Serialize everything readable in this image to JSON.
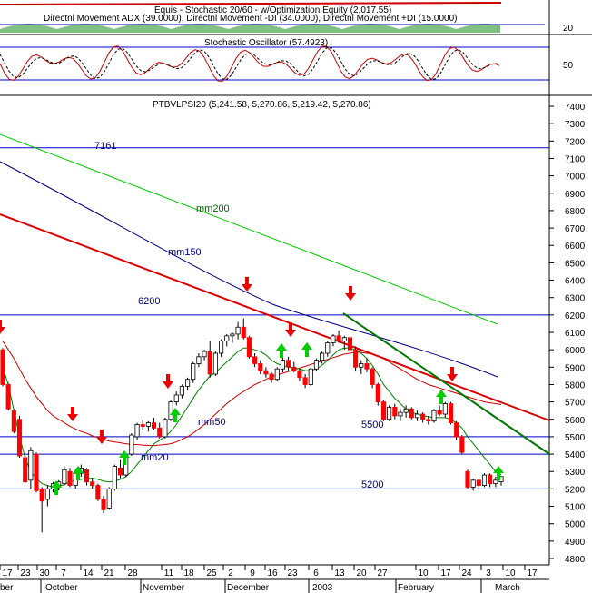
{
  "panels": {
    "equity_title": "Equis - Stochastic 20/60 - w/Optimization Equity (2,017.55)",
    "dmi_title": "Directnl Movement ADX (39.0000), Directnl Movement -DI (34.0000), Directnl Movement +DI (15.0000)",
    "dmi_level": "20",
    "stoch_title": "Stochastic Oscillator (57.4923)",
    "stoch_level": "50",
    "price_title": "PTBVLPSI20 (5,241.58, 5,270.86, 5,219.42, 5,270.86)"
  },
  "annotations": {
    "level_7161": "7161",
    "level_6200": "6200",
    "level_5500": "5500",
    "level_5200": "5200",
    "mm200": "mm200",
    "mm150": "mm150",
    "mm50": "mm50",
    "mm20": "mm20"
  },
  "colors": {
    "up_candle": "#ffffff",
    "down_candle": "#ff0000",
    "mm20": "#008000",
    "mm50": "#cc0000",
    "mm150": "#000080",
    "mm200": "#00cc00",
    "trend_red": "#dd0000",
    "trend_green": "#007700",
    "horizontal_levels": "#0000cc",
    "buy_arrow": "#00cc00",
    "sell_arrow": "#ee0000"
  },
  "chart_data": {
    "type": "candlestick",
    "title": "PTBVLPSI20 (5,241.58, 5,270.86, 5,219.42, 5,270.86)",
    "ylim": [
      4700,
      7450
    ],
    "y_ticks": [
      "4800",
      "4900",
      "5000",
      "5100",
      "5200",
      "5300",
      "5400",
      "5500",
      "5600",
      "5700",
      "5800",
      "5900",
      "6000",
      "6100",
      "6200",
      "6300",
      "6400",
      "6500",
      "6600",
      "6700",
      "6800",
      "6900",
      "7000",
      "7100",
      "7200",
      "7300",
      "7400"
    ],
    "x_ticks": [
      "17",
      "23",
      "30",
      "7",
      "14",
      "21",
      "28",
      "11",
      "18",
      "25",
      "2",
      "9",
      "16",
      "23",
      "6",
      "13",
      "20",
      "27",
      "10",
      "17",
      "24",
      "3",
      "10",
      "17"
    ],
    "months": [
      "ber",
      "October",
      "November",
      "December",
      "2003",
      "February",
      "March"
    ],
    "horizontal_levels": [
      7161,
      6200,
      5500,
      5400,
      5200
    ],
    "candles": [
      {
        "o": 6000,
        "h": 6010,
        "l": 5790,
        "c": 5800
      },
      {
        "o": 5800,
        "h": 5810,
        "l": 5650,
        "c": 5660
      },
      {
        "o": 5650,
        "h": 5660,
        "l": 5520,
        "c": 5530
      },
      {
        "o": 5600,
        "h": 5620,
        "l": 5380,
        "c": 5390
      },
      {
        "o": 5380,
        "h": 5390,
        "l": 5230,
        "c": 5240
      },
      {
        "o": 5250,
        "h": 5440,
        "l": 5200,
        "c": 5420
      },
      {
        "o": 5400,
        "h": 5410,
        "l": 5180,
        "c": 5190
      },
      {
        "o": 5200,
        "h": 5210,
        "l": 4950,
        "c": 5130
      },
      {
        "o": 5140,
        "h": 5220,
        "l": 5100,
        "c": 5200
      },
      {
        "o": 5200,
        "h": 5240,
        "l": 5180,
        "c": 5230
      },
      {
        "o": 5220,
        "h": 5250,
        "l": 5190,
        "c": 5240
      },
      {
        "o": 5230,
        "h": 5330,
        "l": 5220,
        "c": 5310
      },
      {
        "o": 5300,
        "h": 5320,
        "l": 5210,
        "c": 5220
      },
      {
        "o": 5220,
        "h": 5300,
        "l": 5200,
        "c": 5290
      },
      {
        "o": 5290,
        "h": 5340,
        "l": 5270,
        "c": 5320
      },
      {
        "o": 5310,
        "h": 5320,
        "l": 5220,
        "c": 5240
      },
      {
        "o": 5240,
        "h": 5260,
        "l": 5200,
        "c": 5220
      },
      {
        "o": 5220,
        "h": 5230,
        "l": 5130,
        "c": 5140
      },
      {
        "o": 5140,
        "h": 5160,
        "l": 5060,
        "c": 5080
      },
      {
        "o": 5090,
        "h": 5210,
        "l": 5080,
        "c": 5200
      },
      {
        "o": 5200,
        "h": 5340,
        "l": 5190,
        "c": 5330
      },
      {
        "o": 5320,
        "h": 5370,
        "l": 5260,
        "c": 5280
      },
      {
        "o": 5280,
        "h": 5400,
        "l": 5270,
        "c": 5390
      },
      {
        "o": 5400,
        "h": 5520,
        "l": 5390,
        "c": 5510
      },
      {
        "o": 5500,
        "h": 5580,
        "l": 5480,
        "c": 5570
      },
      {
        "o": 5570,
        "h": 5600,
        "l": 5540,
        "c": 5560
      },
      {
        "o": 5560,
        "h": 5590,
        "l": 5530,
        "c": 5580
      },
      {
        "o": 5580,
        "h": 5610,
        "l": 5540,
        "c": 5550
      },
      {
        "o": 5550,
        "h": 5580,
        "l": 5490,
        "c": 5500
      },
      {
        "o": 5500,
        "h": 5610,
        "l": 5490,
        "c": 5600
      },
      {
        "o": 5600,
        "h": 5710,
        "l": 5590,
        "c": 5700
      },
      {
        "o": 5700,
        "h": 5760,
        "l": 5680,
        "c": 5740
      },
      {
        "o": 5740,
        "h": 5800,
        "l": 5720,
        "c": 5790
      },
      {
        "o": 5790,
        "h": 5840,
        "l": 5770,
        "c": 5830
      },
      {
        "o": 5830,
        "h": 5930,
        "l": 5810,
        "c": 5920
      },
      {
        "o": 5920,
        "h": 5980,
        "l": 5900,
        "c": 5960
      },
      {
        "o": 5960,
        "h": 6000,
        "l": 5940,
        "c": 5990
      },
      {
        "o": 5990,
        "h": 6050,
        "l": 5840,
        "c": 5860
      },
      {
        "o": 5860,
        "h": 5990,
        "l": 5850,
        "c": 5980
      },
      {
        "o": 5980,
        "h": 6060,
        "l": 5960,
        "c": 6050
      },
      {
        "o": 6050,
        "h": 6090,
        "l": 6020,
        "c": 6080
      },
      {
        "o": 6080,
        "h": 6100,
        "l": 6040,
        "c": 6090
      },
      {
        "o": 6090,
        "h": 6160,
        "l": 6060,
        "c": 6130
      },
      {
        "o": 6130,
        "h": 6180,
        "l": 6060,
        "c": 6070
      },
      {
        "o": 6070,
        "h": 6080,
        "l": 5950,
        "c": 5960
      },
      {
        "o": 5960,
        "h": 5980,
        "l": 5900,
        "c": 5920
      },
      {
        "o": 5920,
        "h": 5940,
        "l": 5860,
        "c": 5880
      },
      {
        "o": 5880,
        "h": 5900,
        "l": 5840,
        "c": 5860
      },
      {
        "o": 5860,
        "h": 5870,
        "l": 5810,
        "c": 5830
      },
      {
        "o": 5830,
        "h": 5900,
        "l": 5820,
        "c": 5890
      },
      {
        "o": 5890,
        "h": 5960,
        "l": 5870,
        "c": 5940
      },
      {
        "o": 5940,
        "h": 5960,
        "l": 5880,
        "c": 5900
      },
      {
        "o": 5900,
        "h": 5930,
        "l": 5870,
        "c": 5880
      },
      {
        "o": 5880,
        "h": 5890,
        "l": 5820,
        "c": 5840
      },
      {
        "o": 5840,
        "h": 5860,
        "l": 5780,
        "c": 5800
      },
      {
        "o": 5800,
        "h": 5900,
        "l": 5790,
        "c": 5890
      },
      {
        "o": 5890,
        "h": 5950,
        "l": 5880,
        "c": 5940
      },
      {
        "o": 5940,
        "h": 5990,
        "l": 5920,
        "c": 5980
      },
      {
        "o": 5980,
        "h": 6050,
        "l": 5960,
        "c": 6040
      },
      {
        "o": 6040,
        "h": 6090,
        "l": 6020,
        "c": 6080
      },
      {
        "o": 6080,
        "h": 6110,
        "l": 6040,
        "c": 6050
      },
      {
        "o": 6050,
        "h": 6080,
        "l": 6000,
        "c": 6070
      },
      {
        "o": 6070,
        "h": 6080,
        "l": 5980,
        "c": 6000
      },
      {
        "o": 6000,
        "h": 6020,
        "l": 5880,
        "c": 5900
      },
      {
        "o": 5900,
        "h": 5940,
        "l": 5860,
        "c": 5920
      },
      {
        "o": 5920,
        "h": 5950,
        "l": 5870,
        "c": 5890
      },
      {
        "o": 5890,
        "h": 5900,
        "l": 5780,
        "c": 5800
      },
      {
        "o": 5800,
        "h": 5810,
        "l": 5680,
        "c": 5700
      },
      {
        "o": 5700,
        "h": 5710,
        "l": 5590,
        "c": 5600
      },
      {
        "o": 5600,
        "h": 5680,
        "l": 5590,
        "c": 5670
      },
      {
        "o": 5670,
        "h": 5690,
        "l": 5600,
        "c": 5620
      },
      {
        "o": 5620,
        "h": 5660,
        "l": 5590,
        "c": 5640
      },
      {
        "o": 5640,
        "h": 5680,
        "l": 5610,
        "c": 5660
      },
      {
        "o": 5660,
        "h": 5670,
        "l": 5600,
        "c": 5610
      },
      {
        "o": 5610,
        "h": 5650,
        "l": 5590,
        "c": 5630
      },
      {
        "o": 5630,
        "h": 5640,
        "l": 5580,
        "c": 5600
      },
      {
        "o": 5600,
        "h": 5620,
        "l": 5570,
        "c": 5590
      },
      {
        "o": 5590,
        "h": 5660,
        "l": 5580,
        "c": 5650
      },
      {
        "o": 5650,
        "h": 5680,
        "l": 5620,
        "c": 5630
      },
      {
        "o": 5630,
        "h": 5700,
        "l": 5610,
        "c": 5690
      },
      {
        "o": 5690,
        "h": 5700,
        "l": 5570,
        "c": 5580
      },
      {
        "o": 5580,
        "h": 5590,
        "l": 5480,
        "c": 5500
      },
      {
        "o": 5500,
        "h": 5510,
        "l": 5400,
        "c": 5410
      },
      {
        "o": 5300,
        "h": 5310,
        "l": 5200,
        "c": 5210
      },
      {
        "o": 5210,
        "h": 5260,
        "l": 5190,
        "c": 5250
      },
      {
        "o": 5250,
        "h": 5260,
        "l": 5200,
        "c": 5220
      },
      {
        "o": 5220,
        "h": 5290,
        "l": 5210,
        "c": 5280
      },
      {
        "o": 5280,
        "h": 5290,
        "l": 5210,
        "c": 5230
      },
      {
        "o": 5230,
        "h": 5270,
        "l": 5210,
        "c": 5250
      },
      {
        "o": 5241,
        "h": 5271,
        "l": 5219,
        "c": 5271
      }
    ],
    "mm20": [
      5900,
      5800,
      5650,
      5500,
      5380,
      5300,
      5260,
      5230,
      5220,
      5210,
      5215,
      5225,
      5240,
      5250,
      5255,
      5260,
      5262,
      5255,
      5245,
      5240,
      5245,
      5255,
      5270,
      5300,
      5340,
      5380,
      5420,
      5460,
      5480,
      5500,
      5530,
      5570,
      5620,
      5670,
      5720,
      5770,
      5810,
      5850,
      5870,
      5900,
      5930,
      5960,
      5990,
      6010,
      6010,
      6000,
      5990,
      5970,
      5940,
      5920,
      5910,
      5900,
      5895,
      5890,
      5880,
      5880,
      5890,
      5910,
      5940,
      5970,
      6000,
      6010,
      6010,
      6000,
      5980,
      5950,
      5910,
      5860,
      5800,
      5760,
      5720,
      5690,
      5660,
      5640,
      5630,
      5620,
      5615,
      5610,
      5610,
      5610,
      5600,
      5580,
      5550,
      5500,
      5460,
      5420,
      5380,
      5340,
      5300,
      5280
    ],
    "mm50": [
      6050,
      6000,
      5950,
      5890,
      5830,
      5780,
      5730,
      5690,
      5650,
      5620,
      5600,
      5580,
      5560,
      5545,
      5530,
      5520,
      5505,
      5495,
      5485,
      5475,
      5470,
      5465,
      5460,
      5455,
      5455,
      5452,
      5450,
      5450,
      5452,
      5455,
      5460,
      5470,
      5485,
      5500,
      5520,
      5545,
      5570,
      5600,
      5630,
      5660,
      5690,
      5715,
      5740,
      5760,
      5780,
      5800,
      5815,
      5830,
      5845,
      5855,
      5865,
      5875,
      5885,
      5895,
      5905,
      5915,
      5925,
      5935,
      5945,
      5955,
      5965,
      5975,
      5980,
      5985,
      5985,
      5980,
      5975,
      5965,
      5950,
      5930,
      5910,
      5890,
      5870,
      5850,
      5830,
      5815,
      5800,
      5790,
      5780,
      5770,
      5760,
      5750,
      5740,
      5730,
      5720,
      5710,
      5700,
      5695,
      5690,
      5685
    ]
  }
}
